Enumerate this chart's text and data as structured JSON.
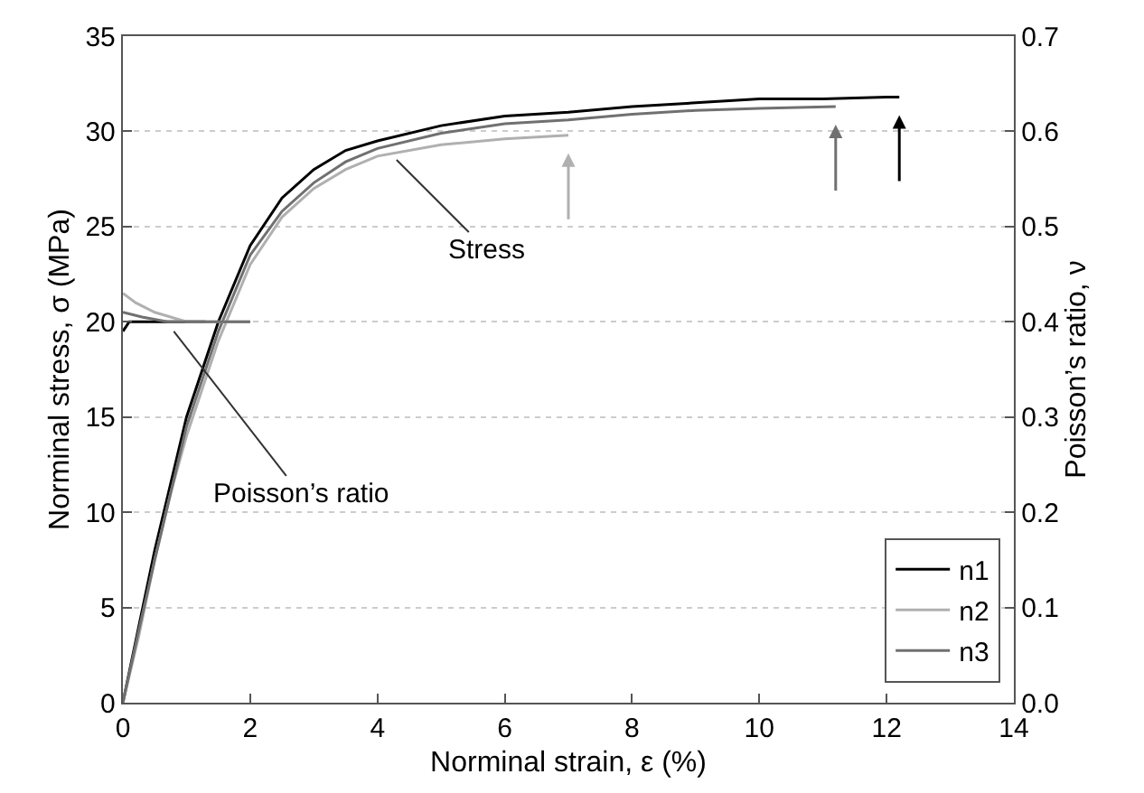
{
  "chart_data": {
    "type": "line",
    "xlabel": "Norminal strain, ε (%)",
    "ylabel": "Norminal stress, σ (MPa)",
    "y2label": "Poisson’s ratio, ν",
    "xlim": [
      0,
      14
    ],
    "xticks": [
      0,
      2,
      4,
      6,
      8,
      10,
      12,
      14
    ],
    "ylim": [
      0,
      35
    ],
    "yticks": [
      0,
      5,
      10,
      15,
      20,
      25,
      30,
      35
    ],
    "y2lim": [
      0,
      0.7
    ],
    "y2ticks": [
      {
        "value": 0,
        "label": "0.0"
      },
      {
        "value": 0.1,
        "label": "0.1"
      },
      {
        "value": 0.2,
        "label": "0.2"
      },
      {
        "value": 0.3,
        "label": "0.3"
      },
      {
        "value": 0.4,
        "label": "0.4"
      },
      {
        "value": 0.5,
        "label": "0.5"
      },
      {
        "value": 0.6,
        "label": "0.6"
      },
      {
        "value": 0.7,
        "label": "0.7"
      }
    ],
    "grid": "y",
    "legend": "bottom right",
    "line_style": "solid",
    "marker": "none",
    "series": [
      {
        "name": "n1",
        "color": "#000000",
        "x": [
          0,
          0.25,
          0.5,
          0.75,
          1,
          1.5,
          2,
          2.5,
          3,
          3.5,
          4,
          5,
          6,
          7,
          8,
          9,
          10,
          11,
          12,
          12.2
        ],
        "values": [
          0,
          4,
          8,
          11.5,
          15,
          20,
          24,
          26.5,
          28,
          29,
          29.5,
          30.3,
          30.8,
          31,
          31.3,
          31.5,
          31.7,
          31.7,
          31.8,
          31.8
        ]
      },
      {
        "name": "n2",
        "color": "#b0b0b0",
        "x": [
          0,
          0.25,
          0.5,
          0.75,
          1,
          1.5,
          2,
          2.5,
          3,
          3.5,
          4,
          5,
          6,
          7
        ],
        "values": [
          0,
          3.5,
          7.5,
          11,
          14,
          19,
          23,
          25.5,
          27,
          28,
          28.7,
          29.3,
          29.6,
          29.8
        ]
      },
      {
        "name": "n3",
        "color": "#707070",
        "x": [
          0,
          0.25,
          0.5,
          0.75,
          1,
          1.5,
          2,
          2.5,
          3,
          3.5,
          4,
          5,
          6,
          7,
          8,
          9,
          10,
          11.2
        ],
        "values": [
          0,
          3.8,
          7.5,
          11,
          14.5,
          19.5,
          23.5,
          25.8,
          27.3,
          28.4,
          29.1,
          29.9,
          30.4,
          30.6,
          30.9,
          31.1,
          31.2,
          31.3
        ]
      },
      {
        "color": "#000000",
        "axis": "y2",
        "x": [
          0,
          0.1,
          0.3,
          0.6,
          1,
          1.3
        ],
        "values": [
          0.39,
          0.4,
          0.4,
          0.4,
          0.4,
          0.4
        ]
      },
      {
        "color": "#b0b0b0",
        "axis": "y2",
        "x": [
          0,
          0.2,
          0.5,
          1,
          1.5,
          2
        ],
        "values": [
          0.43,
          0.42,
          0.41,
          0.4,
          0.4,
          0.4
        ]
      },
      {
        "color": "#707070",
        "axis": "y2",
        "x": [
          0,
          0.3,
          0.7,
          1.2,
          2
        ],
        "values": [
          0.41,
          0.405,
          0.4,
          0.4,
          0.4
        ]
      }
    ],
    "annotations": [
      {
        "text": "Stress",
        "x": 4.3,
        "y": 28.5
      },
      {
        "text": "Poisson’s ratio",
        "x": 0.8,
        "y": 19.5
      }
    ]
  }
}
